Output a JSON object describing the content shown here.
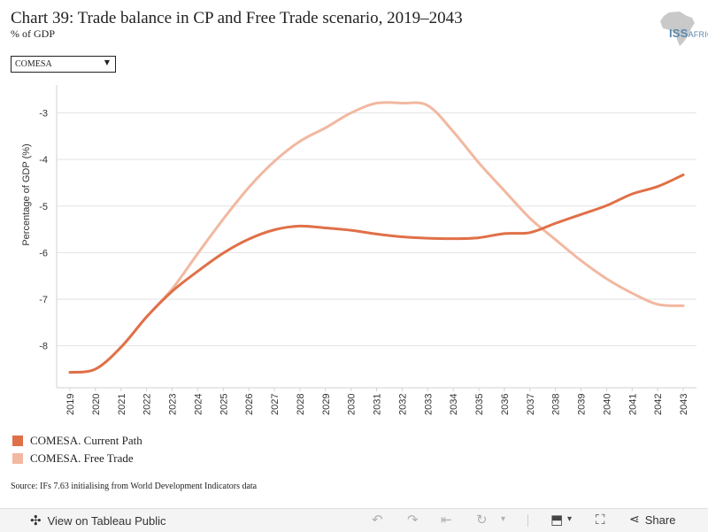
{
  "header": {
    "title": "Chart 39: Trade balance in CP and Free Trade scenario, 2019–2043",
    "subtitle": "% of GDP",
    "logo_text": "ISS AFRICA"
  },
  "filter": {
    "selected": "COMESA",
    "arrow_icon": "triangle-down"
  },
  "chart_data": {
    "type": "line",
    "title": "Chart 39: Trade balance in CP and Free Trade scenario, 2019–2043",
    "xlabel": "",
    "ylabel": "Percentage of GDP (%)",
    "ylim": [
      -8.9,
      -2.4
    ],
    "y_ticks": [
      -3,
      -4,
      -5,
      -6,
      -7,
      -8
    ],
    "y_tick_labels": [
      "-3",
      "-4",
      "-5",
      "-6",
      "-7",
      "-8"
    ],
    "grid": true,
    "legend_position": "bottom-left",
    "x": [
      "2019",
      "2020",
      "2021",
      "2022",
      "2023",
      "2024",
      "2025",
      "2026",
      "2027",
      "2028",
      "2029",
      "2030",
      "2031",
      "2032",
      "2033",
      "2034",
      "2035",
      "2036",
      "2037",
      "2038",
      "2039",
      "2040",
      "2041",
      "2042",
      "2043"
    ],
    "series": [
      {
        "name": "COMESA. Current Path",
        "color": "#e07048",
        "values": [
          -8.57,
          -8.5,
          -8.03,
          -7.38,
          -6.83,
          -6.4,
          -6.01,
          -5.71,
          -5.51,
          -5.43,
          -5.47,
          -5.52,
          -5.6,
          -5.66,
          -5.69,
          -5.7,
          -5.68,
          -5.59,
          -5.57,
          -5.37,
          -5.18,
          -4.99,
          -4.74,
          -4.58,
          -4.33
        ]
      },
      {
        "name": "COMESA. Free Trade",
        "color": "#f2b8a0",
        "values": [
          -8.57,
          -8.5,
          -8.03,
          -7.38,
          -6.78,
          -6.02,
          -5.28,
          -4.6,
          -4.04,
          -3.61,
          -3.32,
          -3.0,
          -2.79,
          -2.79,
          -2.84,
          -3.4,
          -4.07,
          -4.67,
          -5.26,
          -5.72,
          -6.17,
          -6.56,
          -6.87,
          -7.11,
          -7.14
        ]
      }
    ]
  },
  "source": "Source: IFs 7.63 initialising from World Development Indicators data",
  "toolbar": {
    "view_label": "View on Tableau Public",
    "share_label": "Share",
    "tableau_icon": "tableau-logo",
    "undo_icon": "undo",
    "redo_icon": "redo",
    "revert_icon": "revert",
    "refresh_icon": "refresh",
    "download_icon": "download",
    "fullscreen_icon": "fullscreen",
    "share_icon": "share"
  }
}
